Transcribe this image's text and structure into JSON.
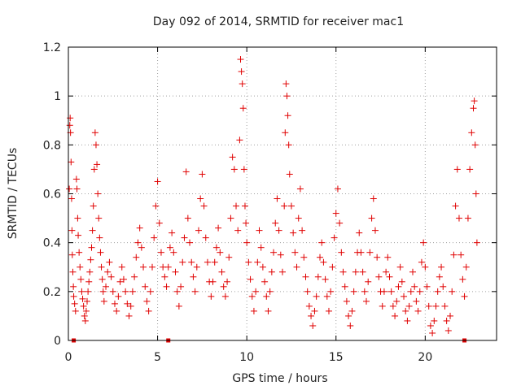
{
  "chart_data": {
    "type": "scatter",
    "title": "Day 092 of 2014, SRMTID for receiver mac1",
    "xlabel": "GPS time / hours",
    "ylabel": "SRMTID / TECUs",
    "xlim": [
      0,
      24
    ],
    "ylim": [
      0,
      1.2
    ],
    "x_ticks": [
      0,
      5,
      10,
      15,
      20
    ],
    "x_tick_labels": [
      "0",
      "5",
      "10",
      "15",
      "20"
    ],
    "y_ticks": [
      0,
      0.2,
      0.4,
      0.6,
      0.8,
      1.0,
      1.2
    ],
    "y_tick_labels": [
      "0",
      "0.2",
      "0.4",
      "0.6",
      "0.8",
      "1",
      "1.2"
    ],
    "grid": true,
    "marker": "+",
    "color": "#e00000",
    "series": [
      {
        "name": "mac1",
        "points": [
          [
            0.05,
            0.62
          ],
          [
            0.08,
            0.88
          ],
          [
            0.1,
            0.91
          ],
          [
            0.12,
            0.85
          ],
          [
            0.15,
            0.73
          ],
          [
            0.18,
            0.58
          ],
          [
            0.2,
            0.45
          ],
          [
            0.22,
            0.35
          ],
          [
            0.25,
            0.28
          ],
          [
            0.28,
            0.22
          ],
          [
            0.3,
            0.18
          ],
          [
            0.35,
            0.15
          ],
          [
            0.4,
            0.12
          ],
          [
            0.45,
            0.66
          ],
          [
            0.48,
            0.62
          ],
          [
            0.52,
            0.5
          ],
          [
            0.55,
            0.43
          ],
          [
            0.6,
            0.36
          ],
          [
            0.65,
            0.3
          ],
          [
            0.7,
            0.25
          ],
          [
            0.75,
            0.2
          ],
          [
            0.8,
            0.17
          ],
          [
            0.85,
            0.14
          ],
          [
            0.9,
            0.1
          ],
          [
            0.95,
            0.08
          ],
          [
            1.0,
            0.12
          ],
          [
            1.05,
            0.16
          ],
          [
            1.1,
            0.2
          ],
          [
            1.15,
            0.24
          ],
          [
            1.2,
            0.28
          ],
          [
            1.25,
            0.33
          ],
          [
            1.3,
            0.38
          ],
          [
            1.35,
            0.45
          ],
          [
            1.4,
            0.55
          ],
          [
            1.45,
            0.7
          ],
          [
            1.5,
            0.85
          ],
          [
            1.55,
            0.8
          ],
          [
            1.6,
            0.72
          ],
          [
            1.65,
            0.6
          ],
          [
            1.7,
            0.5
          ],
          [
            1.75,
            0.42
          ],
          [
            1.8,
            0.36
          ],
          [
            1.85,
            0.3
          ],
          [
            1.9,
            0.25
          ],
          [
            1.95,
            0.2
          ],
          [
            2.0,
            0.16
          ],
          [
            2.1,
            0.22
          ],
          [
            2.2,
            0.28
          ],
          [
            2.3,
            0.32
          ],
          [
            2.4,
            0.26
          ],
          [
            2.5,
            0.2
          ],
          [
            2.6,
            0.15
          ],
          [
            2.7,
            0.12
          ],
          [
            2.8,
            0.18
          ],
          [
            2.9,
            0.24
          ],
          [
            3.0,
            0.3
          ],
          [
            3.1,
            0.25
          ],
          [
            3.2,
            0.2
          ],
          [
            3.3,
            0.15
          ],
          [
            3.4,
            0.1
          ],
          [
            3.5,
            0.14
          ],
          [
            3.6,
            0.2
          ],
          [
            3.7,
            0.26
          ],
          [
            3.8,
            0.34
          ],
          [
            3.9,
            0.4
          ],
          [
            4.0,
            0.46
          ],
          [
            4.1,
            0.38
          ],
          [
            4.2,
            0.3
          ],
          [
            4.3,
            0.22
          ],
          [
            4.4,
            0.16
          ],
          [
            4.5,
            0.12
          ],
          [
            4.6,
            0.2
          ],
          [
            4.7,
            0.3
          ],
          [
            4.8,
            0.42
          ],
          [
            4.9,
            0.55
          ],
          [
            5.0,
            0.65
          ],
          [
            5.1,
            0.48
          ],
          [
            5.2,
            0.36
          ],
          [
            5.3,
            0.3
          ],
          [
            5.4,
            0.26
          ],
          [
            5.5,
            0.22
          ],
          [
            5.6,
            0.3
          ],
          [
            5.7,
            0.38
          ],
          [
            5.8,
            0.44
          ],
          [
            5.9,
            0.36
          ],
          [
            6.0,
            0.28
          ],
          [
            6.1,
            0.2
          ],
          [
            6.2,
            0.14
          ],
          [
            6.3,
            0.22
          ],
          [
            6.4,
            0.32
          ],
          [
            6.5,
            0.42
          ],
          [
            6.6,
            0.69
          ],
          [
            6.7,
            0.5
          ],
          [
            6.8,
            0.4
          ],
          [
            6.9,
            0.32
          ],
          [
            7.0,
            0.26
          ],
          [
            7.1,
            0.2
          ],
          [
            7.2,
            0.3
          ],
          [
            7.3,
            0.45
          ],
          [
            7.4,
            0.58
          ],
          [
            7.5,
            0.68
          ],
          [
            7.6,
            0.55
          ],
          [
            7.7,
            0.42
          ],
          [
            7.8,
            0.32
          ],
          [
            7.9,
            0.24
          ],
          [
            8.0,
            0.18
          ],
          [
            8.1,
            0.24
          ],
          [
            8.2,
            0.32
          ],
          [
            8.3,
            0.38
          ],
          [
            8.4,
            0.46
          ],
          [
            8.5,
            0.36
          ],
          [
            8.6,
            0.28
          ],
          [
            8.7,
            0.22
          ],
          [
            8.8,
            0.18
          ],
          [
            8.9,
            0.24
          ],
          [
            9.0,
            0.34
          ],
          [
            9.1,
            0.5
          ],
          [
            9.2,
            0.75
          ],
          [
            9.3,
            0.7
          ],
          [
            9.4,
            0.55
          ],
          [
            9.5,
            0.45
          ],
          [
            9.6,
            0.82
          ],
          [
            9.65,
            1.15
          ],
          [
            9.7,
            1.1
          ],
          [
            9.75,
            1.05
          ],
          [
            9.8,
            0.95
          ],
          [
            9.85,
            0.7
          ],
          [
            9.9,
            0.55
          ],
          [
            9.95,
            0.48
          ],
          [
            10.0,
            0.4
          ],
          [
            10.1,
            0.32
          ],
          [
            10.2,
            0.25
          ],
          [
            10.3,
            0.18
          ],
          [
            10.4,
            0.12
          ],
          [
            10.5,
            0.2
          ],
          [
            10.6,
            0.32
          ],
          [
            10.7,
            0.45
          ],
          [
            10.8,
            0.38
          ],
          [
            10.9,
            0.3
          ],
          [
            11.0,
            0.24
          ],
          [
            11.1,
            0.18
          ],
          [
            11.2,
            0.12
          ],
          [
            11.3,
            0.2
          ],
          [
            11.4,
            0.28
          ],
          [
            11.5,
            0.36
          ],
          [
            11.6,
            0.48
          ],
          [
            11.7,
            0.58
          ],
          [
            11.8,
            0.45
          ],
          [
            11.9,
            0.35
          ],
          [
            12.0,
            0.28
          ],
          [
            12.1,
            0.55
          ],
          [
            12.15,
            0.85
          ],
          [
            12.2,
            1.05
          ],
          [
            12.25,
            1.0
          ],
          [
            12.3,
            0.92
          ],
          [
            12.35,
            0.8
          ],
          [
            12.4,
            0.68
          ],
          [
            12.5,
            0.55
          ],
          [
            12.6,
            0.44
          ],
          [
            12.7,
            0.36
          ],
          [
            12.8,
            0.3
          ],
          [
            12.9,
            0.5
          ],
          [
            13.0,
            0.62
          ],
          [
            13.1,
            0.45
          ],
          [
            13.2,
            0.34
          ],
          [
            13.3,
            0.26
          ],
          [
            13.4,
            0.2
          ],
          [
            13.5,
            0.14
          ],
          [
            13.6,
            0.1
          ],
          [
            13.7,
            0.06
          ],
          [
            13.8,
            0.12
          ],
          [
            13.9,
            0.18
          ],
          [
            14.0,
            0.26
          ],
          [
            14.1,
            0.34
          ],
          [
            14.2,
            0.4
          ],
          [
            14.3,
            0.32
          ],
          [
            14.4,
            0.25
          ],
          [
            14.5,
            0.18
          ],
          [
            14.6,
            0.12
          ],
          [
            14.7,
            0.2
          ],
          [
            14.8,
            0.3
          ],
          [
            14.9,
            0.42
          ],
          [
            15.0,
            0.52
          ],
          [
            15.1,
            0.62
          ],
          [
            15.2,
            0.48
          ],
          [
            15.3,
            0.36
          ],
          [
            15.4,
            0.28
          ],
          [
            15.5,
            0.22
          ],
          [
            15.6,
            0.16
          ],
          [
            15.7,
            0.1
          ],
          [
            15.8,
            0.06
          ],
          [
            15.9,
            0.12
          ],
          [
            16.0,
            0.2
          ],
          [
            16.1,
            0.28
          ],
          [
            16.2,
            0.36
          ],
          [
            16.3,
            0.44
          ],
          [
            16.4,
            0.36
          ],
          [
            16.5,
            0.28
          ],
          [
            16.6,
            0.2
          ],
          [
            16.7,
            0.16
          ],
          [
            16.8,
            0.24
          ],
          [
            16.9,
            0.36
          ],
          [
            17.0,
            0.5
          ],
          [
            17.1,
            0.58
          ],
          [
            17.2,
            0.45
          ],
          [
            17.3,
            0.34
          ],
          [
            17.4,
            0.26
          ],
          [
            17.5,
            0.2
          ],
          [
            17.6,
            0.14
          ],
          [
            17.7,
            0.2
          ],
          [
            17.8,
            0.28
          ],
          [
            17.9,
            0.34
          ],
          [
            18.0,
            0.26
          ],
          [
            18.1,
            0.2
          ],
          [
            18.2,
            0.14
          ],
          [
            18.3,
            0.1
          ],
          [
            18.4,
            0.16
          ],
          [
            18.5,
            0.22
          ],
          [
            18.6,
            0.3
          ],
          [
            18.7,
            0.24
          ],
          [
            18.8,
            0.18
          ],
          [
            18.9,
            0.12
          ],
          [
            19.0,
            0.08
          ],
          [
            19.1,
            0.14
          ],
          [
            19.2,
            0.2
          ],
          [
            19.3,
            0.28
          ],
          [
            19.4,
            0.22
          ],
          [
            19.5,
            0.16
          ],
          [
            19.6,
            0.12
          ],
          [
            19.7,
            0.2
          ],
          [
            19.8,
            0.32
          ],
          [
            19.9,
            0.4
          ],
          [
            20.0,
            0.3
          ],
          [
            20.1,
            0.22
          ],
          [
            20.2,
            0.14
          ],
          [
            20.3,
            0.06
          ],
          [
            20.4,
            0.03
          ],
          [
            20.5,
            0.08
          ],
          [
            20.6,
            0.14
          ],
          [
            20.7,
            0.2
          ],
          [
            20.8,
            0.26
          ],
          [
            20.9,
            0.3
          ],
          [
            21.0,
            0.22
          ],
          [
            21.1,
            0.14
          ],
          [
            21.2,
            0.08
          ],
          [
            21.3,
            0.04
          ],
          [
            21.4,
            0.1
          ],
          [
            21.5,
            0.2
          ],
          [
            21.6,
            0.35
          ],
          [
            21.7,
            0.55
          ],
          [
            21.8,
            0.7
          ],
          [
            21.9,
            0.5
          ],
          [
            22.0,
            0.35
          ],
          [
            22.1,
            0.25
          ],
          [
            22.2,
            0.18
          ],
          [
            22.3,
            0.3
          ],
          [
            22.4,
            0.5
          ],
          [
            22.5,
            0.7
          ],
          [
            22.6,
            0.85
          ],
          [
            22.7,
            0.95
          ],
          [
            22.75,
            0.98
          ],
          [
            22.8,
            0.8
          ],
          [
            22.85,
            0.6
          ],
          [
            22.9,
            0.4
          ]
        ]
      }
    ],
    "baseline_markers": [
      0.3,
      5.6,
      22.2
    ]
  }
}
